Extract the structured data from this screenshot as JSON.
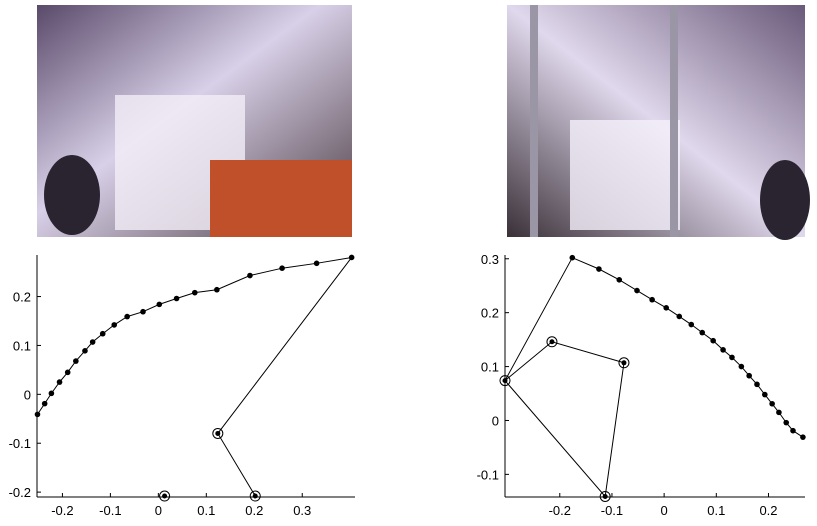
{
  "chart_data": [
    {
      "type": "line",
      "xlim": [
        -0.253,
        0.41
      ],
      "ylim": [
        -0.21,
        0.285
      ],
      "xticks": [
        -0.2,
        -0.1,
        0,
        0.1,
        0.2,
        0.3
      ],
      "yticks": [
        -0.2,
        -0.1,
        0,
        0.1,
        0.2
      ],
      "series": [
        {
          "color": "#000000",
          "marker": "dot",
          "x": [
            -0.252,
            -0.237,
            -0.223,
            -0.206,
            -0.189,
            -0.172,
            -0.153,
            -0.137,
            -0.116,
            -0.092,
            -0.065,
            -0.032,
            0.002,
            0.038,
            0.076,
            0.122,
            0.191,
            0.258,
            0.33,
            0.403
          ],
          "values": [
            -0.041,
            -0.019,
            0.002,
            0.025,
            0.045,
            0.068,
            0.089,
            0.107,
            0.124,
            0.142,
            0.159,
            0.169,
            0.184,
            0.196,
            0.208,
            0.214,
            0.243,
            0.258,
            0.268,
            0.28
          ]
        },
        {
          "color": "#000000",
          "marker": "circle",
          "x": [
            0.124,
            0.202
          ],
          "values": [
            -0.08,
            -0.208
          ]
        },
        {
          "color": "#000000",
          "marker": "circle",
          "x": [
            0.013
          ],
          "values": [
            -0.208
          ]
        }
      ],
      "links": [
        {
          "color": "#000000",
          "x": [
            0.403,
            0.124,
            0.202
          ],
          "values": [
            0.28,
            -0.08,
            -0.208
          ]
        }
      ]
    },
    {
      "type": "line",
      "xlim": [
        -0.305,
        0.27
      ],
      "ylim": [
        -0.142,
        0.307
      ],
      "xticks": [
        -0.2,
        -0.1,
        0,
        0.1,
        0.2
      ],
      "yticks": [
        -0.1,
        0,
        0.1,
        0.2,
        0.3
      ],
      "series": [
        {
          "color": "#000000",
          "marker": "dot",
          "x": [
            -0.176,
            -0.125,
            -0.086,
            -0.052,
            -0.023,
            0.004,
            0.029,
            0.052,
            0.073,
            0.094,
            0.113,
            0.13,
            0.148,
            0.163,
            0.178,
            0.193,
            0.207,
            0.22,
            0.234,
            0.247,
            0.266
          ],
          "values": [
            0.302,
            0.281,
            0.261,
            0.241,
            0.224,
            0.209,
            0.193,
            0.178,
            0.163,
            0.148,
            0.131,
            0.117,
            0.1,
            0.083,
            0.067,
            0.048,
            0.031,
            0.015,
            -0.004,
            -0.019,
            -0.031
          ]
        },
        {
          "color": "#000000",
          "marker": "circle",
          "x": [
            -0.305,
            -0.215,
            -0.077,
            -0.113
          ],
          "values": [
            0.074,
            0.146,
            0.107,
            -0.141
          ]
        }
      ],
      "links": [
        {
          "color": "#000000",
          "x": [
            -0.176,
            -0.305,
            -0.215,
            -0.077,
            -0.113,
            -0.305
          ],
          "values": [
            0.302,
            0.074,
            0.146,
            0.107,
            -0.141,
            0.074
          ]
        }
      ]
    }
  ]
}
